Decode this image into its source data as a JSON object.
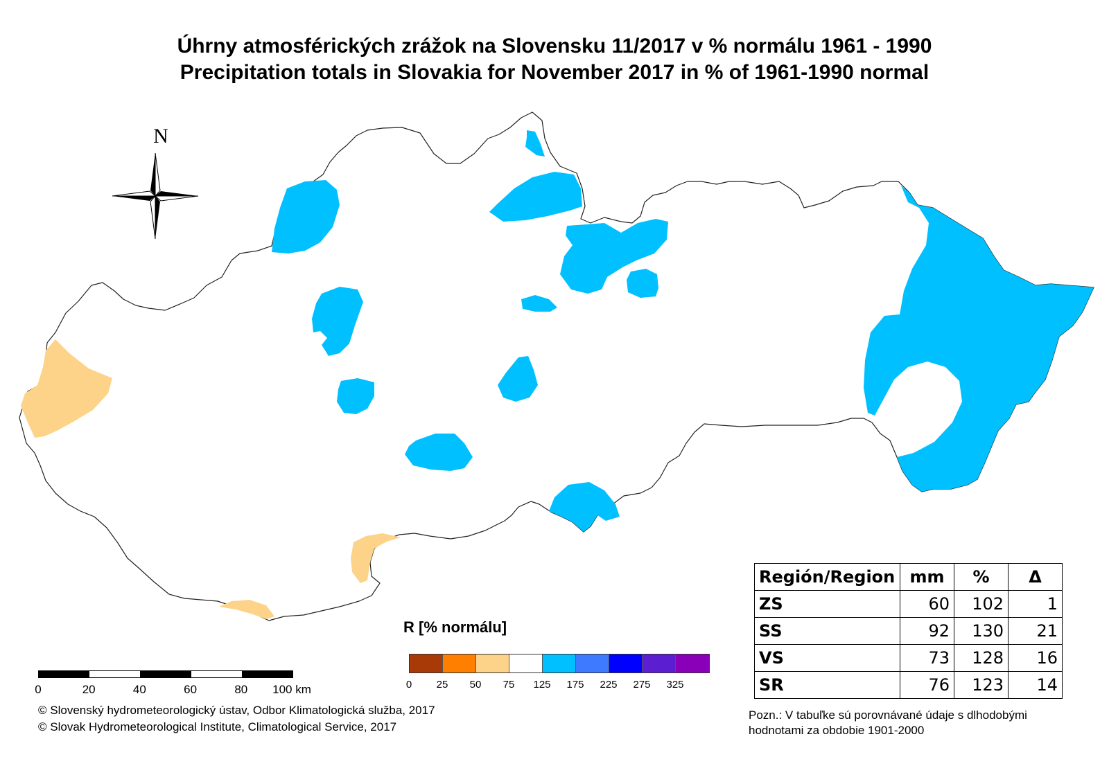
{
  "title_sk": "Úhrny atmosférických zrážok na Slovensku 11/2017 v % normálu 1961 - 1990",
  "title_en": "Precipitation totals in Slovakia for November 2017 in % of 1961-1990 normal",
  "north_label": "N",
  "legend": {
    "title": "R [% normálu]",
    "colors": [
      "#a83a08",
      "#ff8000",
      "#fdd38a",
      "#ffffff",
      "#00c0ff",
      "#3e7aff",
      "#0000ff",
      "#5b1ed1",
      "#8a00b8"
    ],
    "ticks": [
      "0",
      "25",
      "50",
      "75",
      "125",
      "175",
      "225",
      "275",
      "325"
    ]
  },
  "scale": {
    "ticks": [
      "0",
      "20",
      "40",
      "60",
      "80"
    ],
    "unit_label": "100 km"
  },
  "credits": [
    "© Slovenský hydrometeorologický ústav, Odbor Klimatologická služba, 2017",
    "© Slovak Hydrometeorological Institute, Climatological Service, 2017"
  ],
  "table": {
    "headers": [
      "Región/Region",
      "mm",
      "%",
      "Δ"
    ],
    "rows": [
      {
        "region": "ZS",
        "mm": "60",
        "pct": "102",
        "delta": "1"
      },
      {
        "region": "SS",
        "mm": "92",
        "pct": "130",
        "delta": "21"
      },
      {
        "region": "VS",
        "mm": "73",
        "pct": "128",
        "delta": "16"
      },
      {
        "region": "SR",
        "mm": "76",
        "pct": "123",
        "delta": "14"
      }
    ]
  },
  "note": "Pozn.: V tabuľke sú porovnávané údaje s dlhodobými hodnotami za obdobie 1901-2000",
  "colors": {
    "wet_zone": "#00c0ff",
    "dry_zone": "#fdd38a",
    "border": "#222222"
  }
}
